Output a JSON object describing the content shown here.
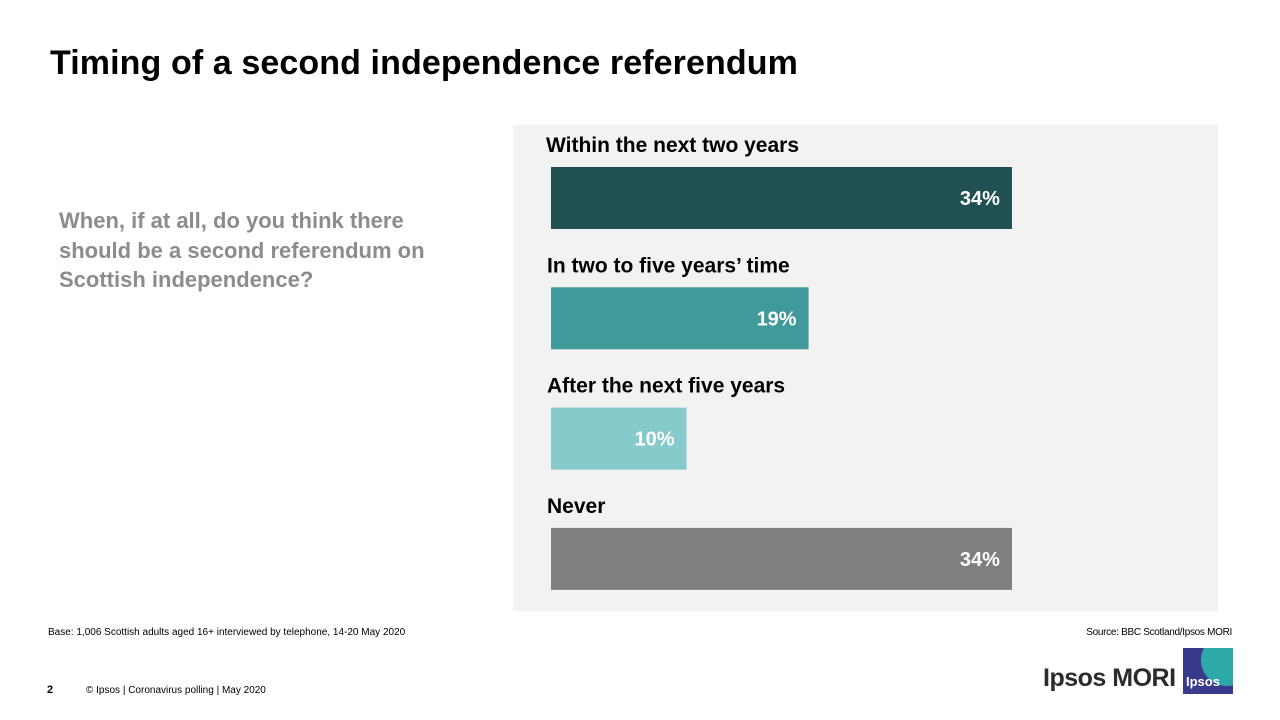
{
  "title": "Timing of a second independence referendum",
  "question": "When, if at all, do you think there should be a second referendum on Scottish independence?",
  "footer": {
    "base": "Base: 1,006 Scottish adults aged 16+ interviewed by telephone, 14-20 May 2020",
    "source": "Source: BBC Scotland/Ipsos MORI",
    "page": "2",
    "copyright": "© Ipsos | Coronavirus polling | May 2020",
    "brand": "Ipsos MORI",
    "logo_text": "Ipsos"
  },
  "colors": {
    "panel": "#f2f2f2",
    "bars": [
      "#215052",
      "#419a9a",
      "#86cacb",
      "#7f7f7f"
    ]
  },
  "chart_data": {
    "type": "bar",
    "orientation": "horizontal",
    "categories": [
      "Within the next two years",
      "In two to five years’ time",
      "After the next five years",
      "Never"
    ],
    "values": [
      34,
      19,
      10,
      34
    ],
    "value_labels": [
      "34%",
      "19%",
      "10%",
      "34%"
    ],
    "xlim": [
      0,
      52
    ],
    "grid": false
  }
}
